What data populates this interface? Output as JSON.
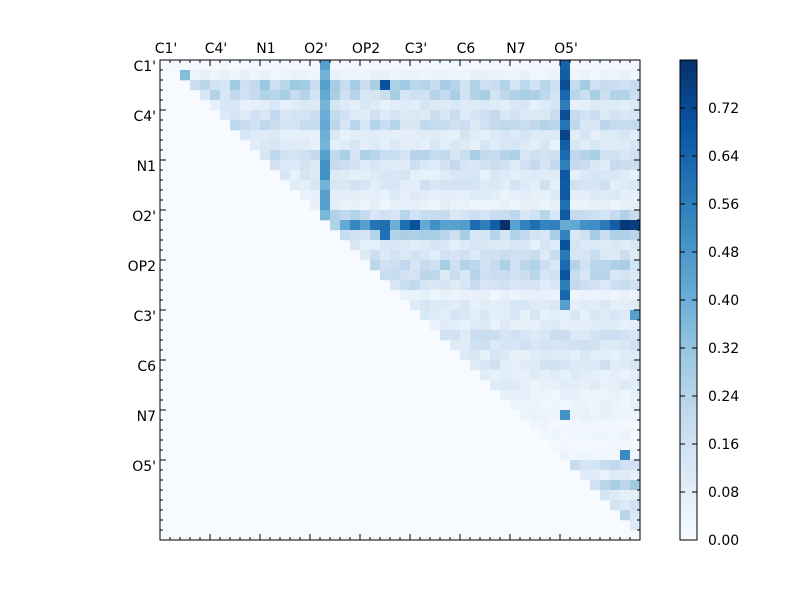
{
  "chart_data": {
    "type": "heatmap",
    "title": "",
    "xlabel": "",
    "ylabel": "",
    "n": 48,
    "x_tick_labels": [
      "C1'",
      "C4'",
      "N1",
      "O2'",
      "OP2",
      "C3'",
      "C6",
      "N7",
      "O5'"
    ],
    "y_tick_labels": [
      "C1'",
      "C4'",
      "N1",
      "O2'",
      "OP2",
      "C3'",
      "C6",
      "N7",
      "O5'"
    ],
    "tick_label_indices": [
      0,
      5,
      10,
      15,
      20,
      25,
      30,
      35,
      40
    ],
    "x_tick_position": "top",
    "matrix_shape": "upper-triangle",
    "colorbar": {
      "vmin": 0,
      "vmax": 0.8,
      "tick_labels": [
        "0.00",
        "0.08",
        "0.16",
        "0.24",
        "0.32",
        "0.40",
        "0.48",
        "0.56",
        "0.64",
        "0.72"
      ],
      "tick_values": [
        0,
        0.08,
        0.16,
        0.24,
        0.32,
        0.4,
        0.48,
        0.56,
        0.64,
        0.72
      ],
      "colormap": "Blues",
      "colors": [
        "#f7fbff",
        "#deebf7",
        "#c6dbef",
        "#9ecae1",
        "#6baed6",
        "#4292c6",
        "#2171b5",
        "#08519c",
        "#08306b"
      ]
    },
    "row_base_values": [
      0.02,
      0.05,
      0.22,
      0.2,
      0.1,
      0.15,
      0.18,
      0.1,
      0.1,
      0.2,
      0.15,
      0.1,
      0.12,
      0.08,
      0.06,
      0.18,
      0.25,
      0.2,
      0.1,
      0.14,
      0.2,
      0.18,
      0.15,
      0.05,
      0.1,
      0.1,
      0.08,
      0.15,
      0.12,
      0.1,
      0.12,
      0.08,
      0.08,
      0.05,
      0.05,
      0.05,
      0.03,
      0.03,
      0.02,
      0.03,
      0.15,
      0.08,
      0.22,
      0.1,
      0.15,
      0.2,
      0.15,
      0.02
    ],
    "column_accents": [
      {
        "column": 40,
        "from_row": 0,
        "to_row": 23,
        "value": 0.62
      },
      {
        "column": 16,
        "from_row": 0,
        "to_row": 16,
        "value": 0.4
      }
    ],
    "row_accents": [
      {
        "row": 16,
        "from_column": 18,
        "to_column": 47,
        "value": 0.52
      }
    ],
    "peak_cells": [
      {
        "row": 16,
        "column": 34,
        "value": 0.8
      },
      {
        "row": 16,
        "column": 46,
        "value": 0.78
      },
      {
        "row": 16,
        "column": 47,
        "value": 0.76
      },
      {
        "row": 16,
        "column": 25,
        "value": 0.7
      },
      {
        "row": 16,
        "column": 33,
        "value": 0.66
      },
      {
        "row": 16,
        "column": 45,
        "value": 0.66
      },
      {
        "row": 7,
        "column": 40,
        "value": 0.74
      },
      {
        "row": 2,
        "column": 22,
        "value": 0.7
      },
      {
        "row": 17,
        "column": 22,
        "value": 0.6
      },
      {
        "row": 2,
        "column": 16,
        "value": 0.45
      },
      {
        "row": 10,
        "column": 16,
        "value": 0.5
      },
      {
        "row": 11,
        "column": 16,
        "value": 0.5
      },
      {
        "row": 24,
        "column": 40,
        "value": 0.45
      },
      {
        "row": 35,
        "column": 40,
        "value": 0.5
      },
      {
        "row": 39,
        "column": 46,
        "value": 0.52
      },
      {
        "row": 25,
        "column": 47,
        "value": 0.45
      },
      {
        "row": 1,
        "column": 2,
        "value": 0.35
      }
    ]
  }
}
